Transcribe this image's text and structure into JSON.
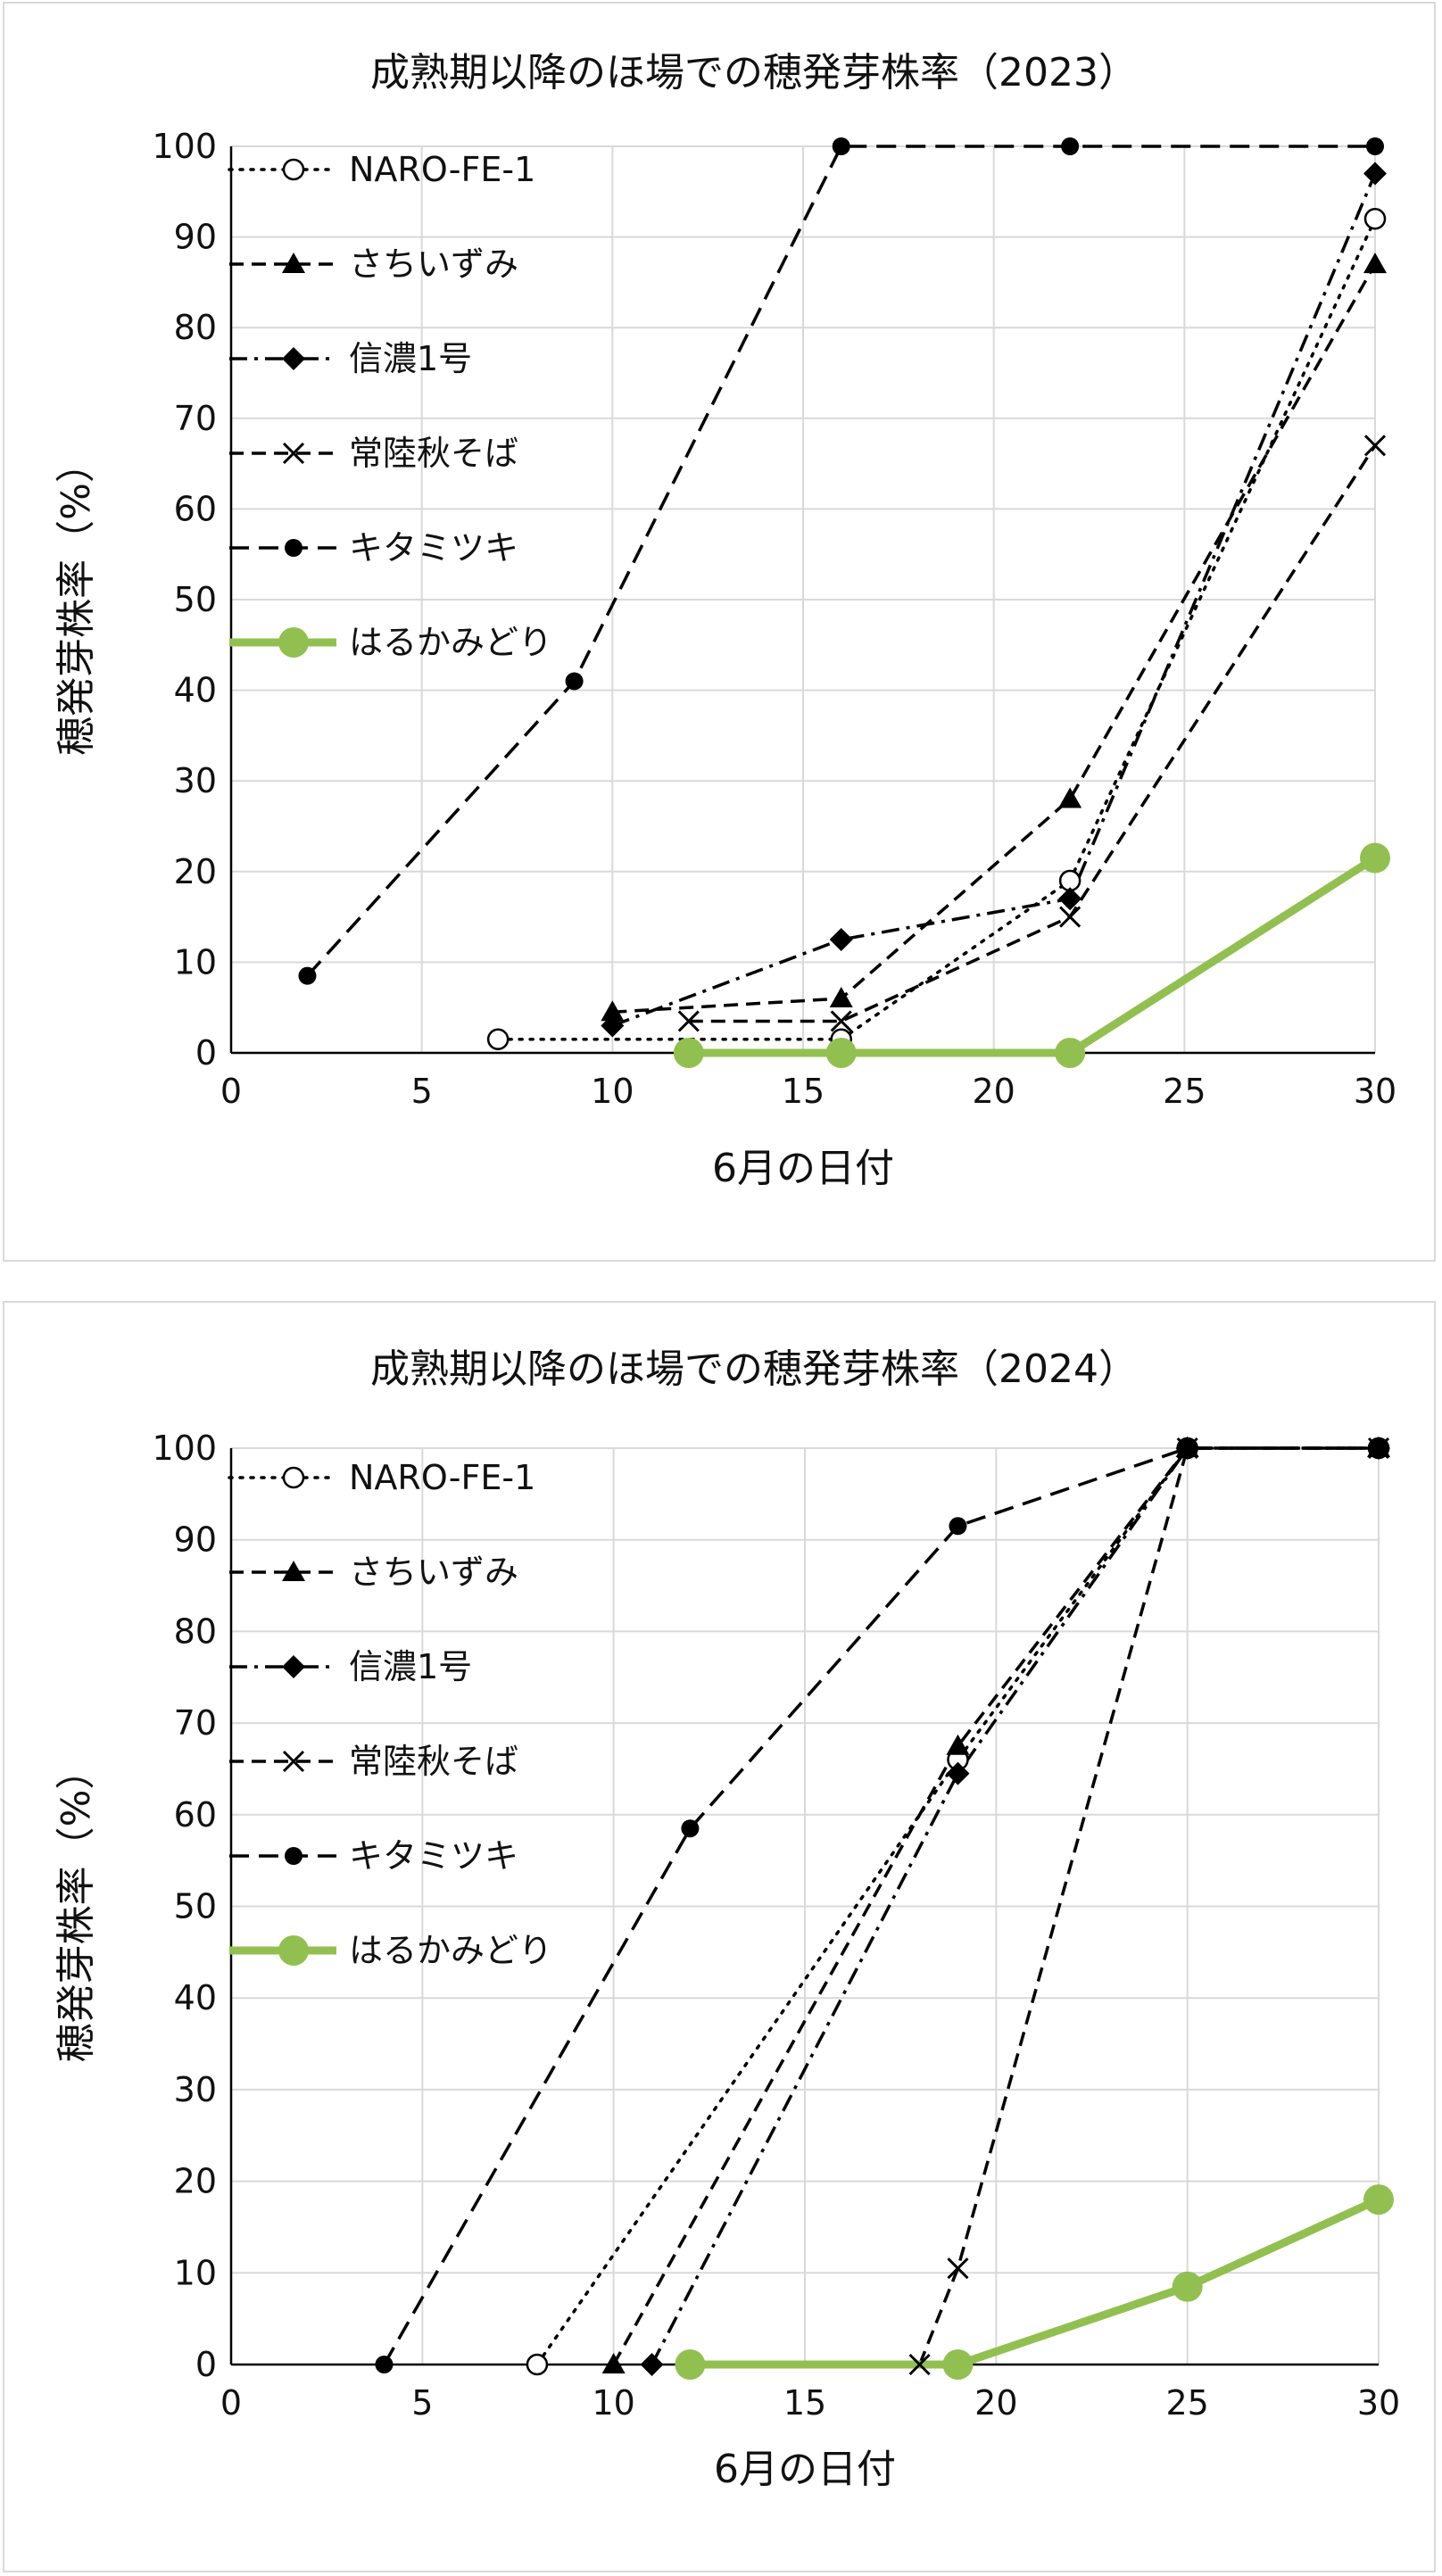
{
  "chart_data": [
    {
      "type": "line",
      "title": "成熟期以降のほ場での穂発芽株率（2023）",
      "xlabel": "6月の日付",
      "ylabel": "穂発芽株率（%）",
      "xlim": [
        0,
        30
      ],
      "ylim": [
        0,
        100
      ],
      "x_ticks": [
        "0",
        "5",
        "10",
        "15",
        "20",
        "25",
        "30"
      ],
      "y_ticks": [
        "0",
        "10",
        "20",
        "30",
        "40",
        "50",
        "60",
        "70",
        "80",
        "90",
        "100"
      ],
      "grid": true,
      "legend_position": "top-left",
      "series": [
        {
          "name": "NARO-FE-1",
          "line": "dotted",
          "marker": "open-circle",
          "color": "#000000",
          "points": [
            [
              7,
              1.5
            ],
            [
              16,
              1.5
            ],
            [
              22,
              19
            ],
            [
              30,
              92
            ]
          ]
        },
        {
          "name": "さちいずみ",
          "line": "dashed",
          "marker": "triangle",
          "color": "#000000",
          "points": [
            [
              10,
              4.5
            ],
            [
              16,
              6
            ],
            [
              22,
              28
            ],
            [
              30,
              87
            ]
          ]
        },
        {
          "name": "信濃1号",
          "line": "dash-dot",
          "marker": "diamond",
          "color": "#000000",
          "points": [
            [
              10,
              3
            ],
            [
              16,
              12.5
            ],
            [
              22,
              17
            ],
            [
              30,
              97
            ]
          ]
        },
        {
          "name": "常陸秋そば",
          "line": "dashed",
          "marker": "x",
          "color": "#000000",
          "points": [
            [
              12,
              3.5
            ],
            [
              16,
              3.5
            ],
            [
              22,
              15
            ],
            [
              30,
              67
            ]
          ]
        },
        {
          "name": "キタミツキ",
          "line": "long-dashed",
          "marker": "filled-circle",
          "color": "#000000",
          "points": [
            [
              2,
              8.5
            ],
            [
              9,
              41
            ],
            [
              16,
              100
            ],
            [
              22,
              100
            ],
            [
              30,
              100
            ]
          ]
        },
        {
          "name": "はるかみどり",
          "line": "solid-thick",
          "marker": "filled-circle-large",
          "color": "#92c050",
          "points": [
            [
              12,
              0
            ],
            [
              16,
              0
            ],
            [
              22,
              0
            ],
            [
              30,
              21.5
            ]
          ]
        }
      ]
    },
    {
      "type": "line",
      "title": "成熟期以降のほ場での穂発芽株率（2024）",
      "xlabel": "6月の日付",
      "ylabel": "穂発芽株率（%）",
      "xlim": [
        0,
        30
      ],
      "ylim": [
        0,
        100
      ],
      "x_ticks": [
        "0",
        "5",
        "10",
        "15",
        "20",
        "25",
        "30"
      ],
      "y_ticks": [
        "0",
        "10",
        "20",
        "30",
        "40",
        "50",
        "60",
        "70",
        "80",
        "90",
        "100"
      ],
      "grid": true,
      "legend_position": "top-left",
      "series": [
        {
          "name": "NARO-FE-1",
          "line": "dotted",
          "marker": "open-circle",
          "color": "#000000",
          "points": [
            [
              8,
              0
            ],
            [
              19,
              66
            ],
            [
              25,
              100
            ],
            [
              30,
              100
            ]
          ]
        },
        {
          "name": "さちいずみ",
          "line": "dashed",
          "marker": "triangle",
          "color": "#000000",
          "points": [
            [
              10,
              0
            ],
            [
              19,
              67.5
            ],
            [
              25,
              100
            ],
            [
              30,
              100
            ]
          ]
        },
        {
          "name": "信濃1号",
          "line": "dash-dot",
          "marker": "diamond",
          "color": "#000000",
          "points": [
            [
              11,
              0
            ],
            [
              19,
              64.5
            ],
            [
              25,
              100
            ],
            [
              30,
              100
            ]
          ]
        },
        {
          "name": "常陸秋そば",
          "line": "dashed",
          "marker": "x",
          "color": "#000000",
          "points": [
            [
              18,
              0
            ],
            [
              19,
              10.5
            ],
            [
              25,
              100
            ],
            [
              30,
              100
            ]
          ]
        },
        {
          "name": "キタミツキ",
          "line": "long-dashed",
          "marker": "filled-circle",
          "color": "#000000",
          "points": [
            [
              4,
              0
            ],
            [
              12,
              58.5
            ],
            [
              19,
              91.5
            ],
            [
              25,
              100
            ],
            [
              30,
              100
            ]
          ]
        },
        {
          "name": "はるかみどり",
          "line": "solid-thick",
          "marker": "filled-circle-large",
          "color": "#92c050",
          "points": [
            [
              12,
              0
            ],
            [
              19,
              0
            ],
            [
              25,
              8.5
            ],
            [
              30,
              18
            ]
          ]
        }
      ]
    }
  ]
}
